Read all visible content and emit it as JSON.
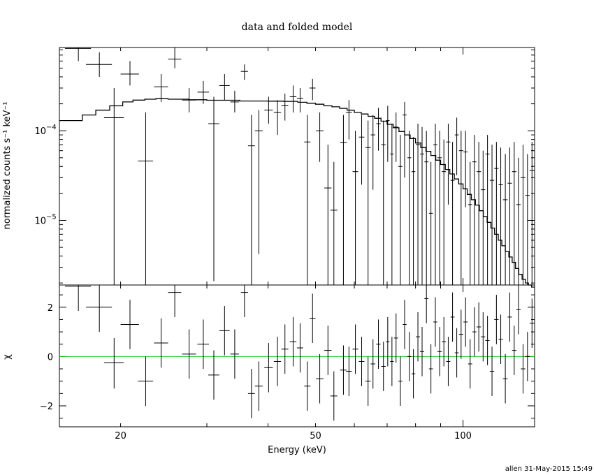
{
  "chart_data": [
    {
      "type": "scatter",
      "title": "data and folded model",
      "xlabel": "",
      "ylabel": "normalized counts s⁻¹ keV⁻¹",
      "xscale": "log",
      "yscale": "log",
      "xlim": [
        15,
        140
      ],
      "ylim": [
        1.9e-06,
        0.00085
      ],
      "grid": false,
      "y_ticks": [
        {
          "value": 0.0001,
          "base": "10",
          "exp": "−4"
        },
        {
          "value": 1e-05,
          "base": "10",
          "exp": "−5"
        }
      ],
      "series": [
        {
          "kind": "errorbar",
          "x": [
            16.4,
            18.1,
            19.4,
            20.9,
            22.5,
            24.2,
            25.8,
            27.6,
            29.5,
            31.0,
            32.6,
            34.2,
            35.8,
            37.0,
            38.3,
            40.1,
            41.8,
            43.3,
            45.0,
            46.5,
            48.1,
            49.3,
            51.0,
            53.0,
            54.5,
            57.0,
            58.5,
            60.3,
            62.1,
            64.0,
            65.5,
            67.2,
            68.8,
            70.2,
            71.6,
            73.0,
            74.5,
            76.0,
            77.7,
            79.2,
            80.9,
            82.5,
            84.2,
            86.0,
            87.8,
            89.6,
            91.4,
            93.3,
            95.2,
            97.1,
            99.1,
            101.2,
            103.4,
            105.5,
            107.7,
            109.9,
            112.2,
            114.6,
            117.0,
            119.4,
            122.0,
            124.6,
            127.2,
            129.8,
            132.6,
            135.4,
            138.3
          ],
          "xerr": [
            1.0,
            1.1,
            0.9,
            0.9,
            0.8,
            0.8,
            0.8,
            0.9,
            0.8,
            0.8,
            0.8,
            0.7,
            0.6,
            0.6,
            0.7,
            0.8,
            0.7,
            0.7,
            0.7,
            0.7,
            0.7,
            0.7,
            0.9,
            0.9,
            0.9,
            0.9,
            0.8,
            0.8,
            0.8,
            0.8,
            0.7,
            0.7,
            0.7,
            0.6,
            0.6,
            0.7,
            0.7,
            0.7,
            0.7,
            0.7,
            0.8,
            0.8,
            0.8,
            0.8,
            0.8,
            0.9,
            0.9,
            0.9,
            0.9,
            0.9,
            1.0,
            1.0,
            1.0,
            1.0,
            1.1,
            1.1,
            1.1,
            1.2,
            1.2,
            1.2,
            1.3,
            1.3,
            1.3,
            1.3,
            1.4,
            1.4,
            1.5
          ],
          "y": [
            0.00083,
            0.00055,
            0.00014,
            0.00043,
            4.6e-05,
            0.00031,
            0.00063,
            0.00022,
            0.00027,
            0.00012,
            0.00032,
            0.00021,
            0.00046,
            6.8e-05,
            0.0001,
            0.00017,
            0.00016,
            0.00019,
            0.00024,
            0.00023,
            7.5e-05,
            0.0003,
            0.0001,
            2.3e-05,
            1.3e-05,
            7.4e-05,
            0.00016,
            3.5e-05,
            8.5e-05,
            6.5e-05,
            9e-05,
            0.00012,
            7e-05,
            0.00013,
            5.5e-05,
            0.00011,
            4e-05,
            0.00015,
            5e-05,
            3.5e-05,
            7e-05,
            5.5e-05,
            4.5e-05,
            1.2e-05,
            7e-05,
            5e-05,
            3.5e-05,
            7.5e-05,
            2.8e-05,
            9e-05,
            6e-05,
            5.8e-05,
            1.5e-05,
            4.5e-05,
            3.5e-05,
            2.2e-05,
            5.5e-05,
            2.8e-05,
            3.8e-05,
            2.5e-05,
            1.7e-05,
            2.6e-05,
            3.5e-05,
            1.5e-05,
            3e-05,
            1.9e-05,
            3.6e-05
          ],
          "ylo": [
            0.0006,
            0.0004,
            1.9e-06,
            0.00032,
            1.9e-06,
            0.00021,
            0.0005,
            0.00016,
            0.0002,
            2.1e-06,
            0.00022,
            0.00016,
            0.00037,
            1.9e-06,
            4.2e-06,
            0.00012,
            9e-05,
            0.00013,
            0.00016,
            0.00016,
            1.9e-06,
            0.00022,
            4.5e-05,
            1.9e-06,
            1.9e-06,
            1.9e-06,
            8e-05,
            1.9e-06,
            2.5e-05,
            1.9e-06,
            2.2e-05,
            6e-05,
            1.9e-06,
            4.5e-05,
            1.9e-06,
            4.5e-05,
            1.9e-06,
            3e-05,
            1.9e-06,
            1.9e-06,
            1.9e-06,
            1.9e-06,
            1.9e-06,
            1.9e-06,
            1.9e-06,
            1.9e-06,
            1.9e-06,
            1.5e-05,
            1.9e-06,
            3.2e-05,
            1.9e-06,
            1.4e-05,
            1.9e-06,
            1.9e-06,
            1.9e-06,
            1.9e-06,
            1.9e-06,
            1.9e-06,
            1.9e-06,
            1.9e-06,
            1.9e-06,
            1.9e-06,
            1.9e-06,
            1.9e-06,
            1.9e-06,
            1.9e-06,
            1.9e-06
          ],
          "yhi": [
            0.00085,
            0.00075,
            0.0003,
            0.0006,
            0.00016,
            0.00043,
            0.00085,
            0.0003,
            0.00036,
            0.00024,
            0.00043,
            0.00028,
            0.00055,
            0.00015,
            0.00017,
            0.00024,
            0.00022,
            0.00026,
            0.00032,
            0.0003,
            0.00015,
            0.00038,
            0.00016,
            7e-05,
            4.5e-05,
            0.00015,
            0.00022,
            0.0001,
            0.00015,
            0.00013,
            0.00015,
            0.00018,
            0.00013,
            0.00019,
            0.00012,
            0.00016,
            9e-05,
            0.00021,
            0.0001,
            8.5e-05,
            0.00012,
            0.00011,
            0.0001,
            4.5e-05,
            0.00012,
            0.0001,
            8e-05,
            0.00012,
            7.5e-05,
            0.00014,
            0.0001,
            0.0001,
            4.5e-05,
            9e-05,
            7.5e-05,
            6e-05,
            9e-05,
            7e-05,
            7.5e-05,
            6.5e-05,
            5.5e-05,
            6.5e-05,
            7.5e-05,
            5e-05,
            7e-05,
            5.5e-05,
            7.5e-05
          ]
        },
        {
          "kind": "step",
          "x_edges": [
            15,
            16.7,
            17.8,
            19,
            20.2,
            21.2,
            22.4,
            23.6,
            25,
            27.5,
            30,
            35,
            40,
            43,
            46,
            48,
            50,
            52,
            54,
            56,
            58,
            60,
            62,
            64,
            66,
            68,
            70,
            72,
            74,
            76,
            78,
            80,
            82,
            84,
            86,
            88,
            90,
            92,
            94,
            96,
            98,
            100,
            102,
            104,
            106,
            108,
            110,
            112,
            114,
            116,
            118,
            120,
            122,
            124,
            126,
            128,
            130,
            132,
            134,
            136,
            138,
            140
          ],
          "y": [
            0.00013,
            0.00015,
            0.00017,
            0.00019,
            0.00021,
            0.00022,
            0.000225,
            0.000228,
            0.000225,
            0.000222,
            0.000219,
            0.000215,
            0.000214,
            0.000213,
            0.000208,
            0.000203,
            0.000198,
            0.00019,
            0.000185,
            0.000178,
            0.00017,
            0.00016,
            0.000154,
            0.000145,
            0.000138,
            0.000128,
            0.000118,
            0.000108,
            9.8e-05,
            9e-05,
            8.2e-05,
            7.3e-05,
            6.5e-05,
            5.9e-05,
            5.3e-05,
            4.7e-05,
            4.2e-05,
            3.7e-05,
            3.3e-05,
            2.9e-05,
            2.55e-05,
            2.25e-05,
            1.95e-05,
            1.7e-05,
            1.48e-05,
            1.28e-05,
            1.1e-05,
            9.5e-06,
            8.2e-06,
            7e-06,
            6e-06,
            5.2e-06,
            4.5e-06,
            3.9e-06,
            3.4e-06,
            2.9e-06,
            2.5e-06,
            2.2e-06,
            2e-06,
            1.9e-06,
            1.8e-06
          ]
        }
      ]
    },
    {
      "type": "scatter",
      "xlabel": "Energy (keV)",
      "ylabel": "χ",
      "xscale": "log",
      "xlim": [
        15,
        140
      ],
      "ylim": [
        -2.85,
        2.9
      ],
      "grid": false,
      "x_ticks": [
        20,
        50,
        100
      ],
      "y_ticks": [
        -2,
        0,
        2
      ],
      "y_tick_labels": [
        "−2",
        "0",
        "2"
      ],
      "zero_line": 0,
      "zero_line_color": "#22cc22",
      "series": [
        {
          "kind": "errorbar",
          "x": [
            16.4,
            18.1,
            19.4,
            20.9,
            22.5,
            24.2,
            25.8,
            27.6,
            29.5,
            31.0,
            32.6,
            34.2,
            35.8,
            37.0,
            38.3,
            40.1,
            41.8,
            43.3,
            45.0,
            46.5,
            48.1,
            49.3,
            51.0,
            53.0,
            54.5,
            57.0,
            58.5,
            60.3,
            62.1,
            64.0,
            65.5,
            67.2,
            68.8,
            70.2,
            71.6,
            73.0,
            74.5,
            76.0,
            77.7,
            79.2,
            80.9,
            82.5,
            84.2,
            86.0,
            87.8,
            89.6,
            91.4,
            93.3,
            95.2,
            97.1,
            99.1,
            101.2,
            103.4,
            105.5,
            107.7,
            109.9,
            112.2,
            114.6,
            117.0,
            119.4,
            122.0,
            124.6,
            127.2,
            129.8,
            132.6,
            135.4,
            138.3
          ],
          "xerr": [
            1.0,
            1.1,
            0.9,
            0.9,
            0.8,
            0.8,
            0.8,
            0.9,
            0.8,
            0.8,
            0.8,
            0.7,
            0.6,
            0.6,
            0.7,
            0.8,
            0.7,
            0.7,
            0.7,
            0.7,
            0.7,
            0.7,
            0.9,
            0.9,
            0.9,
            0.9,
            0.8,
            0.8,
            0.8,
            0.8,
            0.7,
            0.7,
            0.7,
            0.6,
            0.6,
            0.7,
            0.7,
            0.7,
            0.7,
            0.7,
            0.8,
            0.8,
            0.8,
            0.8,
            0.8,
            0.9,
            0.9,
            0.9,
            0.9,
            0.9,
            1.0,
            1.0,
            1.0,
            1.0,
            1.1,
            1.1,
            1.1,
            1.2,
            1.2,
            1.2,
            1.3,
            1.3,
            1.3,
            1.3,
            1.4,
            1.4,
            1.5
          ],
          "y": [
            2.85,
            2.0,
            -0.25,
            1.3,
            -1.0,
            0.55,
            2.6,
            0.1,
            0.5,
            -0.75,
            1.05,
            0.1,
            2.6,
            -1.5,
            -1.2,
            -0.45,
            -0.2,
            0.3,
            0.6,
            0.35,
            -1.2,
            1.55,
            -0.9,
            0.25,
            -1.6,
            -0.55,
            -0.6,
            0.3,
            -0.2,
            -1.0,
            -0.3,
            0.5,
            -0.4,
            0.6,
            -0.2,
            0.75,
            -1.0,
            1.3,
            0.0,
            -0.7,
            0.8,
            0.2,
            2.35,
            -0.5,
            1.4,
            0.2,
            0.6,
            -0.2,
            1.6,
            0.15,
            0.9,
            1.4,
            -0.3,
            1.0,
            1.2,
            0.8,
            0.65,
            -0.6,
            1.5,
            0.7,
            -0.9,
            1.6,
            0.25,
            1.9,
            -0.5,
            0.0,
            1.35
          ],
          "ylo": [
            1.85,
            1.0,
            -1.3,
            0.3,
            -2.0,
            -0.45,
            1.6,
            -0.9,
            -0.5,
            -1.75,
            0.05,
            -0.9,
            1.6,
            -2.5,
            -2.2,
            -1.45,
            -1.2,
            -0.7,
            -0.4,
            -0.65,
            -2.2,
            0.55,
            -1.9,
            -0.75,
            -2.6,
            -1.55,
            -1.6,
            -0.7,
            -1.2,
            -2.0,
            -1.3,
            -0.5,
            -1.4,
            -0.4,
            -1.2,
            -0.25,
            -2.0,
            0.3,
            -1.0,
            -1.7,
            -0.2,
            -0.8,
            1.35,
            -1.5,
            0.4,
            -0.8,
            -0.4,
            -1.2,
            0.6,
            -0.85,
            -0.1,
            0.4,
            -1.3,
            0.0,
            0.2,
            -0.2,
            -0.35,
            -1.6,
            0.5,
            -0.3,
            -1.9,
            0.6,
            -0.75,
            0.9,
            -1.5,
            -1.0,
            0.35
          ],
          "yhi": [
            2.9,
            2.9,
            0.75,
            2.3,
            0.0,
            1.55,
            2.9,
            1.1,
            1.5,
            0.25,
            2.05,
            1.1,
            2.9,
            -0.5,
            -0.2,
            0.55,
            0.8,
            1.3,
            1.6,
            1.35,
            -0.2,
            2.55,
            0.1,
            1.25,
            -0.6,
            0.45,
            0.4,
            1.3,
            0.8,
            0.0,
            0.7,
            1.5,
            0.6,
            1.6,
            0.8,
            1.75,
            0.0,
            2.3,
            1.0,
            0.3,
            1.8,
            1.2,
            2.9,
            0.5,
            2.4,
            1.2,
            1.6,
            0.8,
            2.6,
            1.15,
            1.9,
            2.4,
            0.7,
            2.0,
            2.2,
            1.8,
            1.65,
            0.4,
            2.5,
            1.7,
            0.1,
            2.6,
            1.25,
            2.9,
            0.5,
            1.0,
            2.35
          ]
        }
      ]
    }
  ],
  "footer": {
    "stamp": "allen 31-May-2015 15:49"
  }
}
